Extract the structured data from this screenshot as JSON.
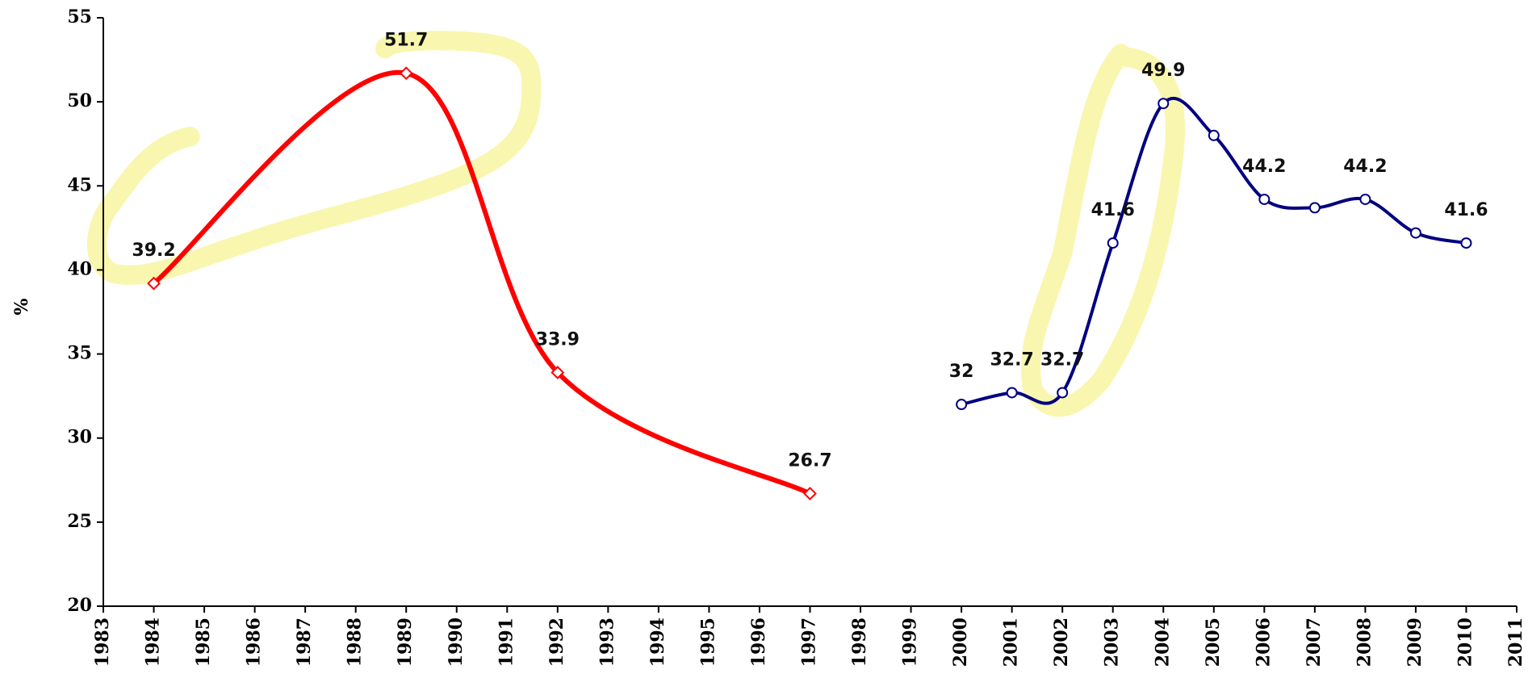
{
  "chart_data": {
    "type": "line",
    "y_label": "%",
    "xlim": [
      1983,
      2011
    ],
    "xticks": [
      1983,
      1984,
      1985,
      1986,
      1987,
      1988,
      1989,
      1990,
      1991,
      1992,
      1993,
      1994,
      1995,
      1996,
      1997,
      1998,
      1999,
      2000,
      2001,
      2002,
      2003,
      2004,
      2005,
      2006,
      2007,
      2008,
      2009,
      2010,
      2011
    ],
    "ylim": [
      20,
      55
    ],
    "yticks": [
      20,
      25,
      30,
      35,
      40,
      45,
      50,
      55
    ],
    "series": [
      {
        "color": "#ff0000",
        "marker": "diamond",
        "x": [
          1984,
          1989,
          1992,
          1997
        ],
        "values": [
          39.2,
          51.7,
          33.9,
          26.7
        ],
        "value_labels": [
          "39.2",
          "51.7",
          "33.9",
          "26.7"
        ]
      },
      {
        "color": "#000080",
        "marker": "circle",
        "x": [
          2000,
          2001,
          2002,
          2003,
          2004,
          2005,
          2006,
          2007,
          2008,
          2009,
          2010
        ],
        "values": [
          32,
          32.7,
          32.7,
          41.6,
          49.9,
          48,
          44.2,
          43.7,
          44.2,
          42.2,
          41.6
        ],
        "value_labels": [
          "32",
          "32.7",
          "32.7",
          "41.6",
          "49.9",
          null,
          "44.2",
          null,
          "44.2",
          null,
          "41.6"
        ]
      }
    ]
  }
}
